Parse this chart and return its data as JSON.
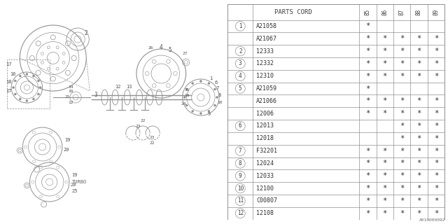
{
  "diagram_code": "A010000092",
  "bg_color": "#ffffff",
  "table_header": "PARTS CORD",
  "years": [
    "85",
    "86",
    "87",
    "88",
    "89"
  ],
  "row_groups": [
    {
      "num": "1",
      "parts": [
        "A21058",
        "A21067"
      ],
      "marks": [
        [
          "*",
          "",
          "",
          "",
          ""
        ],
        [
          "*",
          "*",
          "*",
          "*",
          "*"
        ]
      ]
    },
    {
      "num": "2",
      "parts": [
        "12333"
      ],
      "marks": [
        [
          "*",
          "*",
          "*",
          "*",
          "*"
        ]
      ]
    },
    {
      "num": "3",
      "parts": [
        "12332"
      ],
      "marks": [
        [
          "*",
          "*",
          "*",
          "*",
          "*"
        ]
      ]
    },
    {
      "num": "4",
      "parts": [
        "12310"
      ],
      "marks": [
        [
          "*",
          "*",
          "*",
          "*",
          "*"
        ]
      ]
    },
    {
      "num": "5",
      "parts": [
        "A21059",
        "A21066"
      ],
      "marks": [
        [
          "*",
          "",
          "",
          "",
          ""
        ],
        [
          "*",
          "*",
          "*",
          "*",
          "*"
        ]
      ]
    },
    {
      "num": "",
      "parts": [
        "12006"
      ],
      "marks": [
        [
          "*",
          "*",
          "*",
          "*",
          "*"
        ]
      ]
    },
    {
      "num": "6",
      "parts": [
        "12013",
        "12018"
      ],
      "marks": [
        [
          "",
          "",
          "*",
          "*",
          "*"
        ],
        [
          "",
          "",
          "*",
          "*",
          "*"
        ]
      ]
    },
    {
      "num": "7",
      "parts": [
        "F32201"
      ],
      "marks": [
        [
          "*",
          "*",
          "*",
          "*",
          "*"
        ]
      ]
    },
    {
      "num": "8",
      "parts": [
        "12024"
      ],
      "marks": [
        [
          "*",
          "*",
          "*",
          "*",
          "*"
        ]
      ]
    },
    {
      "num": "9",
      "parts": [
        "12033"
      ],
      "marks": [
        [
          "*",
          "*",
          "*",
          "*",
          "*"
        ]
      ]
    },
    {
      "num": "10",
      "parts": [
        "12100"
      ],
      "marks": [
        [
          "*",
          "*",
          "*",
          "*",
          "*"
        ]
      ]
    },
    {
      "num": "11",
      "parts": [
        "C00807"
      ],
      "marks": [
        [
          "*",
          "*",
          "*",
          "*",
          "*"
        ]
      ]
    },
    {
      "num": "12",
      "parts": [
        "12108"
      ],
      "marks": [
        [
          "*",
          "*",
          "*",
          "*",
          "*"
        ]
      ]
    }
  ],
  "lc": "#909090",
  "tc": "#505050"
}
